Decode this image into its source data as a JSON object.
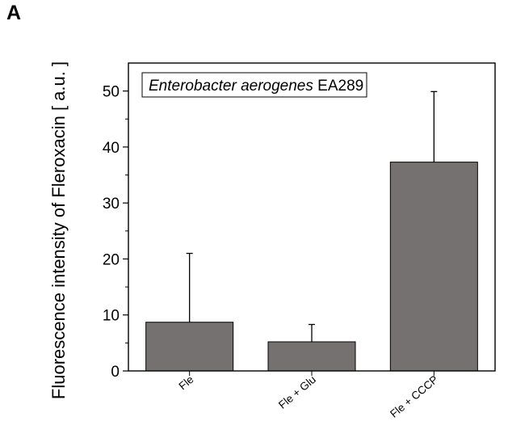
{
  "panel_label": "A",
  "chart_data": {
    "type": "bar",
    "categories": [
      "Fle",
      "Fle + Glu",
      "Fle + CCCP"
    ],
    "values": [
      8.7,
      5.2,
      37.3
    ],
    "error_upper": [
      21.0,
      8.3,
      49.9
    ],
    "ylabel": "Fluorescence intensity of Fleroxacin [ a.u. ]",
    "xlabel": "",
    "ylim": [
      0,
      55
    ],
    "yticks": [
      0,
      10,
      20,
      30,
      40,
      50
    ],
    "legend_box": {
      "italic_part": "Enterobacter aerogenes",
      "regular_part": " EA289",
      "placement": "top-left"
    },
    "bar_color": "#767171",
    "grid": false
  }
}
